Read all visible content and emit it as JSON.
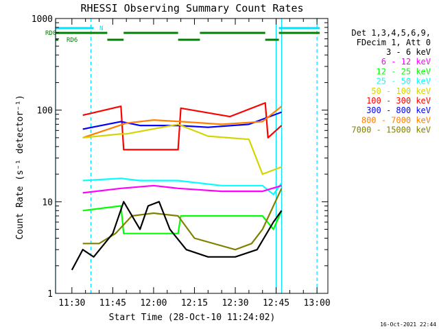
{
  "chart_data": {
    "type": "line",
    "title": "RHESSI Observing Summary Count Rates",
    "xlabel": "Start Time (28-Oct-10 11:24:02)",
    "ylabel": "Count Rate (s⁻¹ detector⁻¹)",
    "ylim": [
      1,
      1000
    ],
    "y_scale": "log",
    "xlim": [
      "11:24",
      "13:04"
    ],
    "x_ticks": [
      "11:30",
      "11:45",
      "12:00",
      "12:15",
      "12:30",
      "12:45",
      "13:00"
    ],
    "y_ticks": [
      "1",
      "10",
      "100",
      "1000"
    ],
    "footer": "16-Oct-2021 22:44",
    "legend": {
      "placement": "top-right",
      "header": [
        "Det 1,3,4,5,6,9,",
        "FDecim 1, Att 0"
      ],
      "entries": [
        {
          "label": "3 - 6 keV",
          "color": "#000000"
        },
        {
          "label": "6 - 12 keV",
          "color": "#ff00ff"
        },
        {
          "label": "12 - 25 keV",
          "color": "#00ff00"
        },
        {
          "label": "25 - 50 keV",
          "color": "#00ffff"
        },
        {
          "label": "50 - 100 keV",
          "color": "#d4d400"
        },
        {
          "label": "100 - 300 keV",
          "color": "#ff0000"
        },
        {
          "label": "300 - 800 keV",
          "color": "#0000ff"
        },
        {
          "label": "800 - 7000 keV",
          "color": "#ff8000"
        },
        {
          "label": "7000 - 15000 keV",
          "color": "#808000"
        }
      ]
    },
    "flags": [
      {
        "label": "RD0",
        "color": "#008000",
        "segments": [
          [
            "11:24",
            "11:43"
          ],
          [
            "11:49",
            "12:09"
          ],
          [
            "12:17",
            "12:41"
          ],
          [
            "12:46",
            "13:01"
          ]
        ]
      },
      {
        "label": "RD6",
        "color": "#008000",
        "segments": [
          [
            "11:24",
            "11:25"
          ],
          [
            "11:43",
            "11:49"
          ],
          [
            "12:09",
            "12:17"
          ],
          [
            "12:41",
            "12:46"
          ]
        ]
      },
      {
        "label": "N",
        "color": "#00e0ff",
        "segments": [
          [
            "11:24",
            "11:38"
          ],
          [
            "12:46",
            "13:01"
          ]
        ]
      }
    ],
    "vlines": [
      {
        "time": "11:24",
        "style": "solid",
        "color": "#00e0ff"
      },
      {
        "time": "11:37",
        "style": "dashed",
        "color": "#00e0ff"
      },
      {
        "time": "12:45",
        "style": "solid",
        "color": "#00e0ff"
      },
      {
        "time": "12:47",
        "style": "solid",
        "color": "#00e0ff"
      },
      {
        "time": "13:00",
        "style": "dashed",
        "color": "#00e0ff"
      }
    ],
    "series": [
      {
        "name": "100 - 300 keV",
        "color": "#ff0000",
        "x": [
          "11:34",
          "11:48",
          "11:49",
          "12:09",
          "12:10",
          "12:28",
          "12:41",
          "12:42",
          "12:47"
        ],
        "y": [
          88,
          110,
          37,
          37,
          105,
          85,
          120,
          50,
          68
        ]
      },
      {
        "name": "300 - 800 keV",
        "color": "#0000ff",
        "x": [
          "11:34",
          "11:48",
          "11:55",
          "12:09",
          "12:20",
          "12:35",
          "12:47"
        ],
        "y": [
          62,
          75,
          68,
          68,
          65,
          70,
          95
        ]
      },
      {
        "name": "800 - 7000 keV",
        "color": "#ff8000",
        "x": [
          "11:34",
          "11:50",
          "12:00",
          "12:10",
          "12:25",
          "12:40",
          "12:47"
        ],
        "y": [
          50,
          72,
          78,
          75,
          70,
          75,
          110
        ]
      },
      {
        "name": "50 - 100 keV",
        "color": "#d4d400",
        "x": [
          "11:34",
          "11:48",
          "11:50",
          "12:09",
          "12:20",
          "12:35",
          "12:40",
          "12:47"
        ],
        "y": [
          50,
          55,
          55,
          70,
          52,
          48,
          20,
          24
        ]
      },
      {
        "name": "25 - 50 keV",
        "color": "#00ffff",
        "x": [
          "11:34",
          "11:48",
          "11:55",
          "12:09",
          "12:25",
          "12:40",
          "12:44",
          "12:47"
        ],
        "y": [
          17,
          18,
          17,
          17,
          15,
          15,
          12,
          16
        ]
      },
      {
        "name": "6 - 12 keV",
        "color": "#ff00ff",
        "x": [
          "11:34",
          "11:48",
          "12:00",
          "12:09",
          "12:25",
          "12:40",
          "12:47"
        ],
        "y": [
          12.5,
          14,
          15,
          14,
          13,
          13,
          15
        ]
      },
      {
        "name": "12 - 25 keV",
        "color": "#00ff00",
        "x": [
          "11:34",
          "11:48",
          "11:49",
          "12:09",
          "12:10",
          "12:40",
          "12:44",
          "12:47"
        ],
        "y": [
          8,
          9,
          4.5,
          4.5,
          7,
          7,
          5,
          8
        ]
      },
      {
        "name": "7000 - 15000 keV",
        "color": "#808000",
        "x": [
          "11:34",
          "11:40",
          "11:46",
          "11:52",
          "12:00",
          "12:09",
          "12:15",
          "12:30",
          "12:36",
          "12:40",
          "12:44",
          "12:47"
        ],
        "y": [
          3.5,
          3.5,
          4.5,
          7,
          7.5,
          7,
          4,
          3,
          3.5,
          5,
          9,
          14
        ]
      },
      {
        "name": "3 - 6 keV",
        "color": "#000000",
        "x": [
          "11:30",
          "11:34",
          "11:38",
          "11:45",
          "11:49",
          "11:55",
          "11:58",
          "12:02",
          "12:06",
          "12:12",
          "12:20",
          "12:30",
          "12:38",
          "12:44",
          "12:47"
        ],
        "y": [
          1.8,
          3,
          2.5,
          4.5,
          10,
          5,
          9,
          10,
          5,
          3,
          2.5,
          2.5,
          3,
          6,
          8
        ]
      }
    ]
  }
}
